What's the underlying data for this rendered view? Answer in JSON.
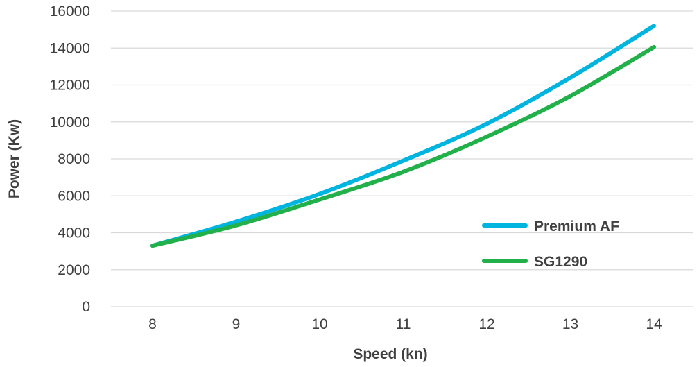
{
  "chart_data": {
    "type": "line",
    "xlabel": "Speed (kn)",
    "ylabel": "Power (Kw)",
    "x": [
      8,
      9,
      10,
      11,
      12,
      13,
      14
    ],
    "ylim": [
      0,
      16000
    ],
    "yticks": [
      0,
      2000,
      4000,
      6000,
      8000,
      10000,
      12000,
      14000,
      16000
    ],
    "grid": true,
    "legend_position": "right",
    "series": [
      {
        "name": "Premium AF",
        "color": "#00b4e0",
        "values": [
          3300,
          4600,
          6100,
          7900,
          9900,
          12400,
          15200
        ]
      },
      {
        "name": "SG1290",
        "color": "#22b04b",
        "values": [
          3300,
          4400,
          5800,
          7300,
          9200,
          11400,
          14050
        ]
      }
    ]
  }
}
